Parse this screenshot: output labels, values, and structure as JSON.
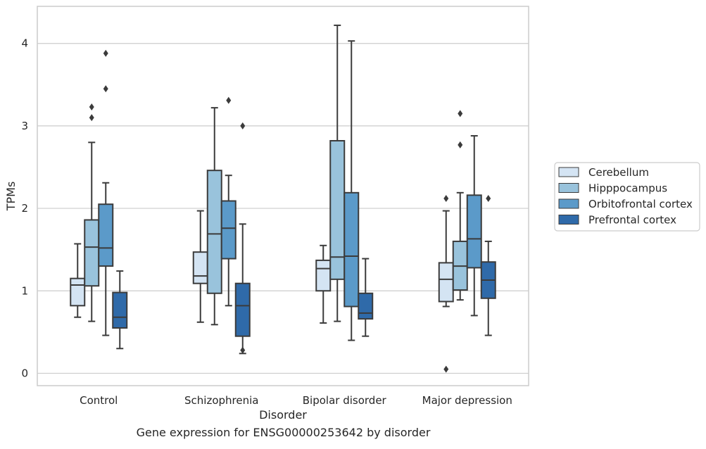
{
  "caption": "Gene expression for ENSG00000253642 by disorder",
  "chart_data": {
    "type": "box",
    "xlabel": "Disorder",
    "ylabel": "TPMs",
    "ylim": [
      -0.15,
      4.45
    ],
    "yticks": [
      0,
      1,
      2,
      3,
      4
    ],
    "grid": "horizontal",
    "legend_position": "right",
    "categories": [
      "Control",
      "Schizophrenia",
      "Bipolar disorder",
      "Major depression"
    ],
    "series": [
      {
        "name": "Cerebellum",
        "color": "#d4e4f3",
        "boxes": [
          {
            "whislo": 0.68,
            "q1": 0.82,
            "med": 1.07,
            "q3": 1.15,
            "whishi": 1.57,
            "fliers": []
          },
          {
            "whislo": 0.62,
            "q1": 1.09,
            "med": 1.18,
            "q3": 1.47,
            "whishi": 1.97,
            "fliers": []
          },
          {
            "whislo": 0.61,
            "q1": 1.0,
            "med": 1.27,
            "q3": 1.37,
            "whishi": 1.55,
            "fliers": []
          },
          {
            "whislo": 0.81,
            "q1": 0.87,
            "med": 1.14,
            "q3": 1.34,
            "whishi": 1.97,
            "fliers": [
              0.05,
              2.12
            ]
          }
        ]
      },
      {
        "name": "Hipppocampus",
        "color": "#99c3dc",
        "boxes": [
          {
            "whislo": 0.63,
            "q1": 1.06,
            "med": 1.53,
            "q3": 1.86,
            "whishi": 2.8,
            "fliers": [
              3.1,
              3.23
            ]
          },
          {
            "whislo": 0.59,
            "q1": 0.97,
            "med": 1.69,
            "q3": 2.46,
            "whishi": 3.22,
            "fliers": []
          },
          {
            "whislo": 0.63,
            "q1": 1.14,
            "med": 1.41,
            "q3": 2.82,
            "whishi": 4.22,
            "fliers": []
          },
          {
            "whislo": 0.89,
            "q1": 1.01,
            "med": 1.3,
            "q3": 1.6,
            "whishi": 2.19,
            "fliers": [
              2.77,
              3.15
            ]
          }
        ]
      },
      {
        "name": "Orbitofrontal cortex",
        "color": "#5b9ac9",
        "boxes": [
          {
            "whislo": 0.46,
            "q1": 1.3,
            "med": 1.52,
            "q3": 2.05,
            "whishi": 2.31,
            "fliers": [
              3.45,
              3.88
            ]
          },
          {
            "whislo": 0.82,
            "q1": 1.39,
            "med": 1.76,
            "q3": 2.09,
            "whishi": 2.4,
            "fliers": [
              3.31
            ]
          },
          {
            "whislo": 0.4,
            "q1": 0.81,
            "med": 1.42,
            "q3": 2.19,
            "whishi": 4.03,
            "fliers": []
          },
          {
            "whislo": 0.7,
            "q1": 1.28,
            "med": 1.63,
            "q3": 2.16,
            "whishi": 2.88,
            "fliers": []
          }
        ]
      },
      {
        "name": "Prefrontal cortex",
        "color": "#2f6aa9",
        "boxes": [
          {
            "whislo": 0.3,
            "q1": 0.55,
            "med": 0.68,
            "q3": 0.98,
            "whishi": 1.24,
            "fliers": []
          },
          {
            "whislo": 0.24,
            "q1": 0.45,
            "med": 0.82,
            "q3": 1.09,
            "whishi": 1.81,
            "fliers": [
              0.28,
              3.0
            ]
          },
          {
            "whislo": 0.45,
            "q1": 0.66,
            "med": 0.73,
            "q3": 0.97,
            "whishi": 1.39,
            "fliers": []
          },
          {
            "whislo": 0.46,
            "q1": 0.91,
            "med": 1.13,
            "q3": 1.35,
            "whishi": 1.6,
            "fliers": [
              2.12
            ]
          }
        ]
      }
    ]
  }
}
